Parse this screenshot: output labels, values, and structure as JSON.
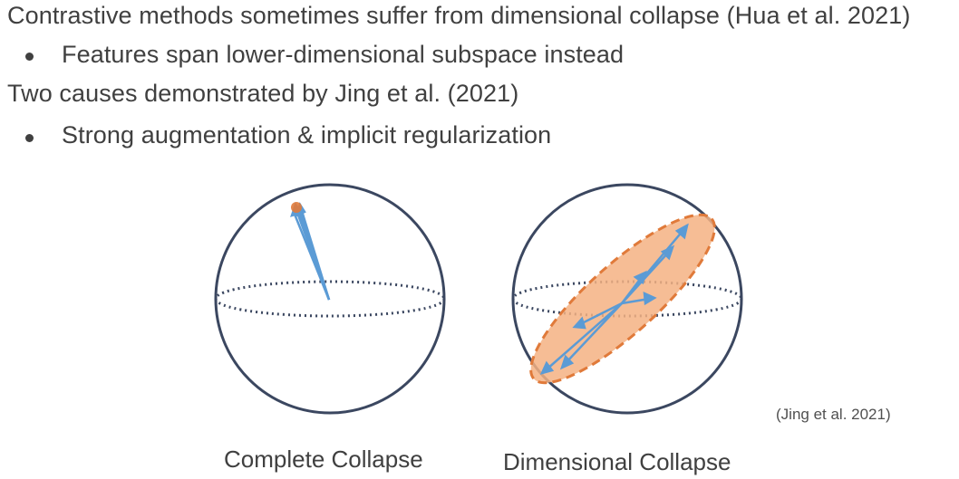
{
  "slide": {
    "line1": "Contrastive methods sometimes suffer from dimensional collapse (Hua et al. 2021)",
    "bullet1": "Features span lower-dimensional subspace instead",
    "line2": "Two causes demonstrated by Jing et al. (2021)",
    "bullet2": "Strong augmentation & implicit regularization"
  },
  "figure": {
    "left_caption": "Complete Collapse",
    "right_caption": "Dimensional Collapse",
    "citation": "(Jing et al. 2021)",
    "colors": {
      "sphere_outline": "#3b4760",
      "arrow": "#5b9bd5",
      "ellipse_fill": "#f4b183",
      "ellipse_stroke": "#e07a3a",
      "point": "#e07a3a"
    }
  }
}
